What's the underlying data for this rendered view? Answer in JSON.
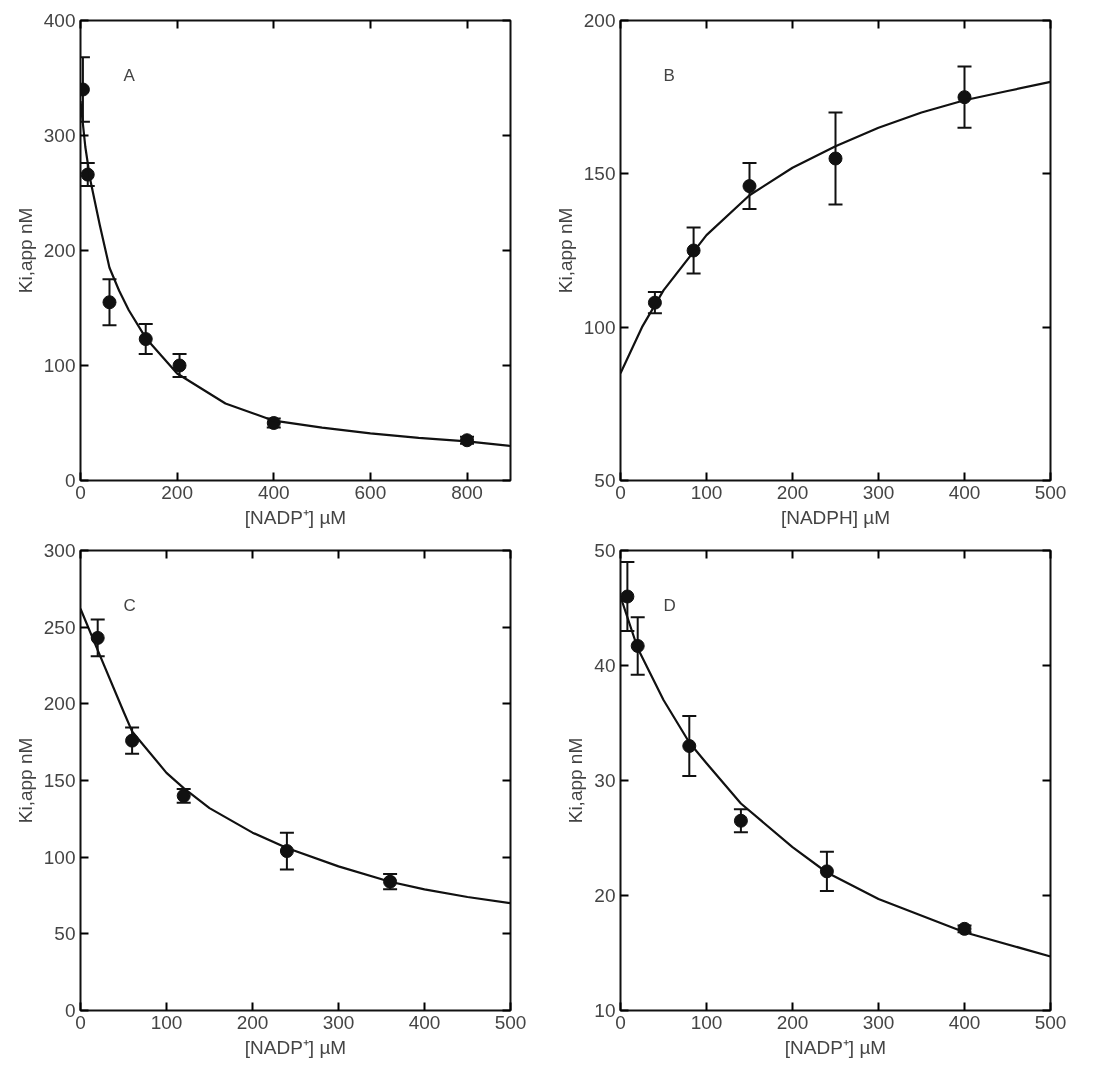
{
  "chart_data": [
    {
      "type": "scatter",
      "annotations": [
        "A"
      ],
      "xlabel": "[NADP⁺] µM",
      "ylabel": "Ki,app nM",
      "xlim": [
        0,
        890
      ],
      "ylim": [
        0,
        400
      ],
      "xticks": [
        0,
        200,
        400,
        600,
        800
      ],
      "yticks": [
        0,
        100,
        200,
        300,
        400
      ],
      "series": [
        {
          "marker": "circle",
          "color": "#111111",
          "x": [
            5,
            15,
            60,
            135,
            205,
            400,
            800
          ],
          "values": [
            340,
            266,
            155,
            123,
            100,
            50,
            35
          ],
          "errors": [
            28,
            10,
            20,
            13,
            10,
            4,
            3
          ]
        },
        {
          "type": "line",
          "color": "#111111",
          "line_style": "solid",
          "x": [
            0,
            10,
            20,
            40,
            60,
            80,
            100,
            135,
            200,
            300,
            400,
            500,
            600,
            700,
            800,
            890
          ],
          "values": [
            330,
            290,
            262,
            222,
            185,
            165,
            148,
            124,
            93,
            67,
            52,
            46,
            41,
            37,
            34,
            30
          ]
        }
      ]
    },
    {
      "type": "scatter",
      "annotations": [
        "B"
      ],
      "xlabel": "[NADPH] µM",
      "ylabel": "Ki,app nM",
      "xlim": [
        0,
        500
      ],
      "ylim": [
        50,
        200
      ],
      "xticks": [
        0,
        100,
        200,
        300,
        400,
        500
      ],
      "yticks": [
        50,
        100,
        150,
        200
      ],
      "series": [
        {
          "marker": "circle",
          "color": "#111111",
          "x": [
            40,
            85,
            150,
            250,
            400
          ],
          "values": [
            108,
            125,
            146,
            155,
            175
          ],
          "errors": [
            3.5,
            7.5,
            7.5,
            15,
            10
          ]
        },
        {
          "type": "line",
          "color": "#111111",
          "line_style": "solid",
          "x": [
            0,
            25,
            50,
            100,
            150,
            200,
            250,
            300,
            350,
            400,
            450,
            500
          ],
          "values": [
            85,
            100,
            112,
            130,
            143,
            152,
            159,
            165,
            170,
            174,
            177,
            180
          ]
        }
      ]
    },
    {
      "type": "scatter",
      "annotations": [
        "C"
      ],
      "xlabel": "[NADP⁺] µM",
      "ylabel": "Ki,app nM",
      "xlim": [
        0,
        500
      ],
      "ylim": [
        0,
        300
      ],
      "xticks": [
        0,
        100,
        200,
        300,
        400,
        500
      ],
      "yticks": [
        0,
        50,
        100,
        150,
        200,
        250,
        300
      ],
      "series": [
        {
          "marker": "circle",
          "color": "#111111",
          "x": [
            20,
            60,
            120,
            240,
            360
          ],
          "values": [
            243,
            176,
            140,
            104,
            84
          ],
          "errors": [
            12,
            8.5,
            4.5,
            12,
            5
          ]
        },
        {
          "type": "line",
          "color": "#111111",
          "line_style": "solid",
          "x": [
            0,
            20,
            50,
            60,
            100,
            120,
            150,
            200,
            240,
            300,
            360,
            400,
            450,
            500
          ],
          "values": [
            262,
            235,
            195,
            182,
            155,
            145,
            132,
            116,
            106,
            94,
            84,
            79,
            74,
            70
          ]
        }
      ]
    },
    {
      "type": "scatter",
      "annotations": [
        "D"
      ],
      "xlabel": "[NADP⁺] µM",
      "ylabel": "Ki,app nM",
      "xlim": [
        0,
        500
      ],
      "ylim": [
        10,
        50
      ],
      "xticks": [
        0,
        100,
        200,
        300,
        400,
        500
      ],
      "yticks": [
        10,
        20,
        30,
        40,
        50
      ],
      "series": [
        {
          "marker": "circle",
          "color": "#111111",
          "x": [
            8,
            20,
            80,
            140,
            240,
            400
          ],
          "values": [
            46,
            41.7,
            33,
            26.5,
            22.1,
            17.1
          ],
          "errors": [
            3,
            2.5,
            2.6,
            1,
            1.7,
            0.3
          ]
        },
        {
          "type": "line",
          "color": "#111111",
          "line_style": "solid",
          "x": [
            0,
            20,
            50,
            80,
            100,
            140,
            200,
            240,
            300,
            400,
            500
          ],
          "values": [
            46,
            41.5,
            37,
            33.3,
            31.5,
            28,
            24.2,
            22,
            19.7,
            16.8,
            14.7
          ]
        }
      ]
    }
  ]
}
